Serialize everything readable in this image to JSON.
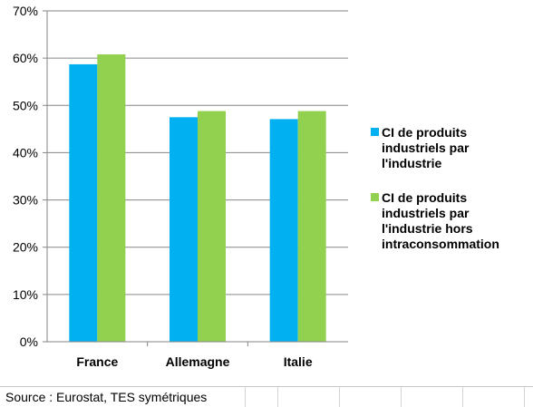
{
  "chart_data": {
    "type": "bar",
    "categories": [
      "France",
      "Allemagne",
      "Italie"
    ],
    "series": [
      {
        "name": "CI de produits industriels par l'industrie",
        "legend_lines": [
          "CI de produits",
          "industriels par",
          "l'industrie"
        ],
        "color": "#00b0f0",
        "values": [
          58.7,
          47.5,
          47.1
        ]
      },
      {
        "name": "CI de produits industriels par l'industrie hors intraconsommation",
        "legend_lines": [
          "CI de produits",
          "industriels par",
          "l'industrie hors",
          "intraconsommation"
        ],
        "color": "#92d050",
        "values": [
          60.8,
          48.8,
          48.8
        ]
      }
    ],
    "ylim": [
      0,
      70
    ],
    "yticks": [
      "0%",
      "10%",
      "20%",
      "30%",
      "40%",
      "50%",
      "60%",
      "70%"
    ],
    "ytick_values": [
      0,
      10,
      20,
      30,
      40,
      50,
      60,
      70
    ],
    "grid": true,
    "legend_position": "right",
    "title": "",
    "xlabel": "",
    "ylabel": ""
  },
  "source": "Source : Eurostat, TES symétriques"
}
